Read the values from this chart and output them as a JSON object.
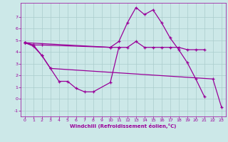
{
  "background_color": "#cce8e8",
  "grid_color": "#aacccc",
  "line_color": "#990099",
  "xlabel": "Windchill (Refroidissement éolien,°C)",
  "xlim": [
    -0.5,
    23.5
  ],
  "ylim": [
    -1.5,
    8.2
  ],
  "yticks": [
    -1,
    0,
    1,
    2,
    3,
    4,
    5,
    6,
    7
  ],
  "xticks": [
    0,
    1,
    2,
    3,
    4,
    5,
    6,
    7,
    8,
    9,
    10,
    11,
    12,
    13,
    14,
    15,
    16,
    17,
    18,
    19,
    20,
    21,
    22,
    23
  ],
  "series": [
    {
      "x": [
        0,
        1,
        2,
        3,
        4,
        5,
        6,
        7,
        8,
        10,
        11
      ],
      "y": [
        4.8,
        4.5,
        3.7,
        2.6,
        1.5,
        1.5,
        0.9,
        0.6,
        0.6,
        1.4,
        4.4
      ]
    },
    {
      "x": [
        0,
        1,
        2,
        10,
        11,
        12,
        13,
        14,
        15,
        16,
        17,
        18,
        19,
        20,
        21
      ],
      "y": [
        4.8,
        4.6,
        4.6,
        4.4,
        4.4,
        4.4,
        4.9,
        4.4,
        4.4,
        4.4,
        4.4,
        4.4,
        4.2,
        4.2,
        4.2
      ]
    },
    {
      "x": [
        0,
        10,
        11,
        12,
        13,
        14,
        15,
        16,
        17,
        18,
        19,
        20,
        21
      ],
      "y": [
        4.8,
        4.4,
        4.9,
        6.5,
        7.8,
        7.2,
        7.6,
        6.5,
        5.2,
        4.2,
        3.1,
        1.7,
        0.2
      ]
    },
    {
      "x": [
        0,
        1,
        2,
        3,
        22,
        23
      ],
      "y": [
        4.8,
        4.6,
        3.7,
        2.6,
        1.7,
        -0.7
      ]
    }
  ]
}
